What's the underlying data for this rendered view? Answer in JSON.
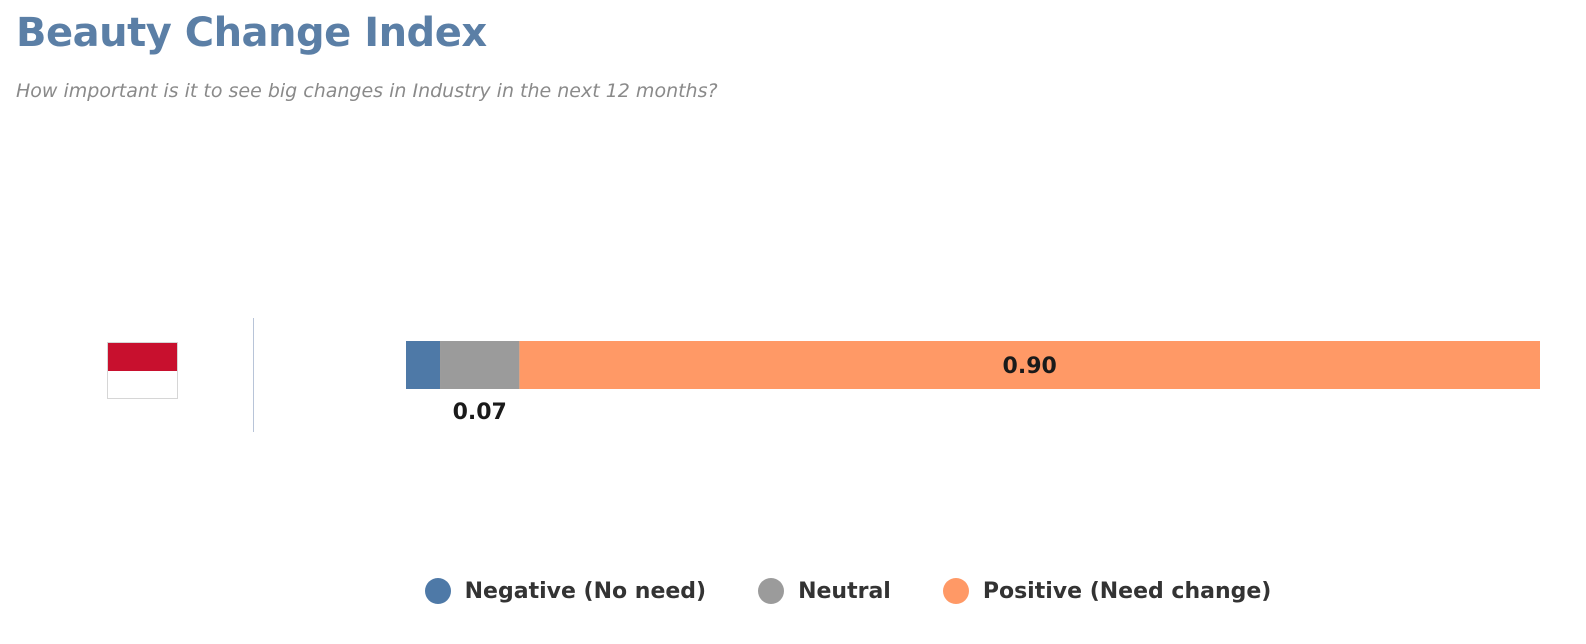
{
  "title": "Beauty Change Index",
  "subtitle": "How important is it to see big changes in Industry in the next 12 months?",
  "flag": {
    "top_color": "#c8102e",
    "bottom_color": "#ffffff"
  },
  "chart_data": {
    "type": "bar",
    "orientation": "horizontal",
    "stacked": true,
    "xlim": [
      0,
      1
    ],
    "grid": false,
    "legend_placement": "bottom",
    "categories": [
      ""
    ],
    "series": [
      {
        "name": "Negative (No need)",
        "color": "#4e79a7",
        "values": [
          0.03
        ],
        "label": ""
      },
      {
        "name": "Neutral",
        "color": "#9b9b9b",
        "values": [
          0.07
        ],
        "label": "0.07"
      },
      {
        "name": "Positive (Need change)",
        "color": "#ff9966",
        "values": [
          0.9
        ],
        "label": "0.90"
      }
    ]
  }
}
